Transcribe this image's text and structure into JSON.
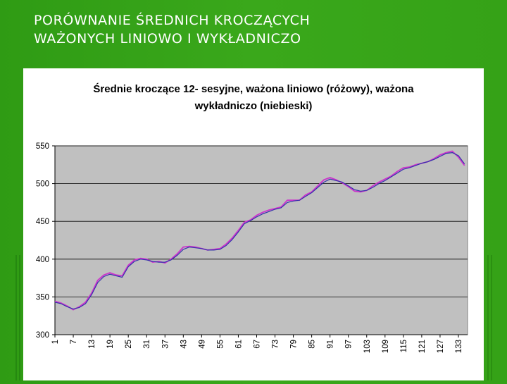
{
  "slide": {
    "title_line1": "PORÓWNANIE ŚREDNICH KROCZĄCYCH",
    "title_line2": "WAŻONYCH LINIOWO I WYKŁADNICZO"
  },
  "chart_data": {
    "type": "line",
    "title_line1": "Średnie kroczące 12- sesyjne,   ważona liniowo (różowy),  ważona",
    "title_line2": "wykładniczo (niebieski)",
    "ylim": [
      300,
      550
    ],
    "yticks": [
      300,
      350,
      400,
      450,
      500,
      550
    ],
    "xlim": [
      1,
      136
    ],
    "xticks": [
      1,
      7,
      13,
      19,
      25,
      31,
      37,
      43,
      49,
      55,
      61,
      67,
      73,
      79,
      85,
      91,
      97,
      103,
      109,
      115,
      121,
      127,
      133
    ],
    "grid": true,
    "plot_background": "#c0c0c0",
    "series": [
      {
        "color": "#cc33cc",
        "x": [
          1,
          3,
          5,
          7,
          9,
          11,
          13,
          15,
          17,
          19,
          21,
          23,
          25,
          27,
          29,
          31,
          33,
          35,
          37,
          39,
          41,
          43,
          45,
          47,
          49,
          51,
          53,
          55,
          57,
          59,
          61,
          63,
          65,
          67,
          69,
          71,
          73,
          75,
          77,
          79,
          81,
          83,
          85,
          87,
          89,
          91,
          93,
          95,
          97,
          99,
          101,
          103,
          105,
          107,
          109,
          111,
          113,
          115,
          117,
          119,
          121,
          123,
          125,
          127,
          129,
          131,
          133,
          135
        ],
        "y": [
          344,
          342,
          338,
          333,
          337,
          343,
          355,
          372,
          379,
          382,
          379,
          378,
          392,
          399,
          401,
          400,
          396,
          397,
          395,
          400,
          407,
          416,
          417,
          416,
          414,
          412,
          413,
          414,
          420,
          428,
          438,
          449,
          452,
          458,
          462,
          465,
          467,
          469,
          478,
          478,
          478,
          485,
          489,
          497,
          505,
          508,
          505,
          501,
          496,
          490,
          489,
          491,
          497,
          502,
          506,
          510,
          516,
          521,
          522,
          525,
          527,
          529,
          533,
          538,
          541,
          543,
          535,
          524
        ]
      },
      {
        "color": "#3333aa",
        "x": [
          1,
          3,
          5,
          7,
          9,
          11,
          13,
          15,
          17,
          19,
          21,
          23,
          25,
          27,
          29,
          31,
          33,
          35,
          37,
          39,
          41,
          43,
          45,
          47,
          49,
          51,
          53,
          55,
          57,
          59,
          61,
          63,
          65,
          67,
          69,
          71,
          73,
          75,
          77,
          79,
          81,
          83,
          85,
          87,
          89,
          91,
          93,
          95,
          97,
          99,
          101,
          103,
          105,
          107,
          109,
          111,
          113,
          115,
          117,
          119,
          121,
          123,
          125,
          127,
          129,
          131,
          133,
          135
        ],
        "y": [
          343,
          341,
          337,
          334,
          336,
          341,
          353,
          369,
          377,
          380,
          378,
          376,
          390,
          397,
          400,
          399,
          397,
          396,
          396,
          399,
          405,
          413,
          416,
          415,
          414,
          412,
          412,
          413,
          418,
          426,
          436,
          447,
          451,
          456,
          460,
          463,
          466,
          468,
          475,
          477,
          478,
          483,
          488,
          495,
          502,
          506,
          504,
          502,
          497,
          492,
          490,
          491,
          495,
          500,
          504,
          509,
          514,
          519,
          521,
          524,
          527,
          529,
          532,
          536,
          540,
          541,
          537,
          526
        ]
      }
    ]
  }
}
